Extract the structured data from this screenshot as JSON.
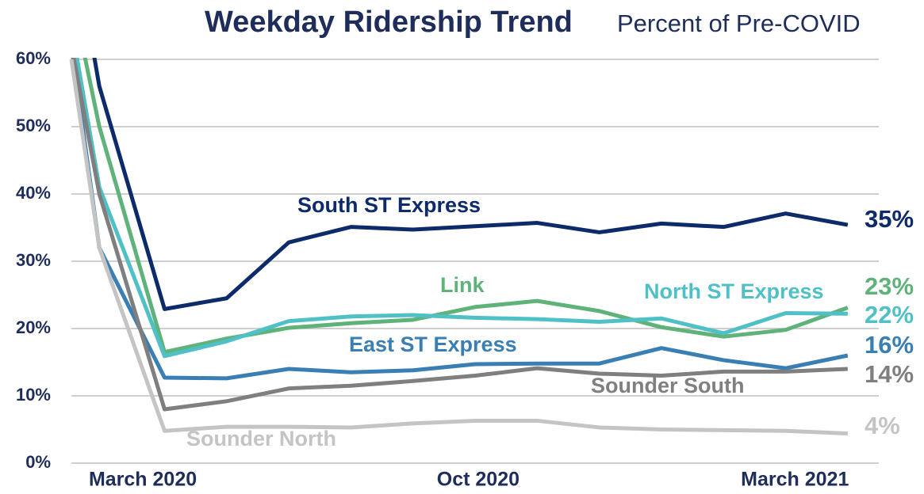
{
  "chart_data": {
    "type": "line",
    "title": "Weekday Ridership Trend",
    "subtitle": "Percent of Pre-COVID",
    "x": [
      0,
      0.45,
      1.5,
      2.5,
      3.5,
      4.5,
      5.5,
      6.5,
      7.5,
      8.5,
      9.5,
      10.5,
      11.5,
      12.5
    ],
    "xlim": [
      0,
      13
    ],
    "xticks": [
      {
        "value": 1.15,
        "label": "March 2020"
      },
      {
        "value": 6.55,
        "label": "Oct 2020"
      },
      {
        "value": 11.65,
        "label": "March 2021"
      }
    ],
    "ylim": [
      0,
      60
    ],
    "yticks": [
      {
        "value": 0,
        "label": "0%"
      },
      {
        "value": 10,
        "label": "10%"
      },
      {
        "value": 20,
        "label": "20%"
      },
      {
        "value": 30,
        "label": "30%"
      },
      {
        "value": 40,
        "label": "40%"
      },
      {
        "value": 50,
        "label": "50%"
      },
      {
        "value": 60,
        "label": "60%"
      }
    ],
    "grid": true,
    "series": [
      {
        "name": "South ST Express",
        "color": "#0d2a6b",
        "end_label": "35%",
        "values": [
          80,
          56,
          22.9,
          24.5,
          32.8,
          35.1,
          34.7,
          35.2,
          35.7,
          34.3,
          35.6,
          35.1,
          37.1,
          35.4
        ]
      },
      {
        "name": "Link",
        "color": "#5fb37a",
        "end_label": "23%",
        "values": [
          70,
          50,
          16.5,
          18.5,
          20.1,
          20.8,
          21.3,
          23.2,
          24.1,
          22.6,
          20.2,
          18.8,
          19.8,
          23.1
        ]
      },
      {
        "name": "North ST Express",
        "color": "#4fc1c6",
        "end_label": "22%",
        "values": [
          65,
          41,
          15.9,
          18.1,
          21.1,
          21.8,
          22.0,
          21.6,
          21.4,
          21.0,
          21.5,
          19.3,
          22.3,
          22.2
        ]
      },
      {
        "name": "East ST Express",
        "color": "#3a7fb4",
        "end_label": "16%",
        "values": [
          62,
          32,
          12.7,
          12.6,
          14.0,
          13.5,
          13.8,
          14.7,
          14.8,
          14.8,
          17.1,
          15.3,
          14.1,
          16.0
        ]
      },
      {
        "name": "Sounder South",
        "color": "#7f7f7f",
        "end_label": "14%",
        "values": [
          62,
          40,
          8.0,
          9.2,
          11.1,
          11.5,
          12.2,
          13.0,
          14.1,
          13.3,
          13.0,
          13.6,
          13.6,
          14.0
        ]
      },
      {
        "name": "Sounder North",
        "color": "#c4c4c4",
        "end_label": "4%",
        "values": [
          60,
          32,
          4.8,
          5.4,
          5.4,
          5.3,
          5.9,
          6.3,
          6.3,
          5.3,
          5.0,
          4.9,
          4.8,
          4.4
        ]
      }
    ]
  }
}
